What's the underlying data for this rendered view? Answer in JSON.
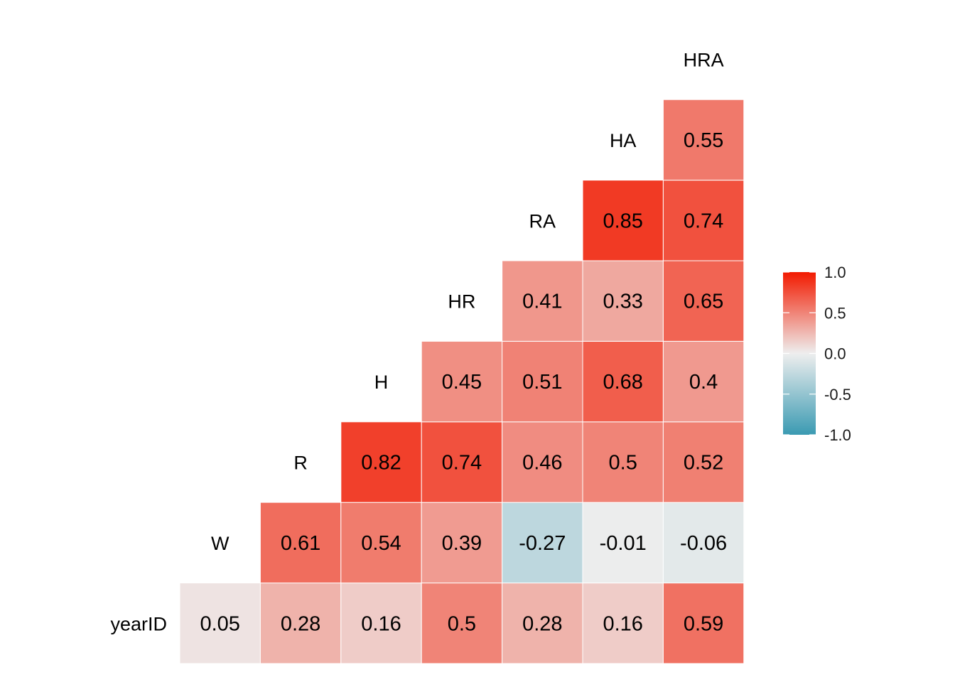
{
  "chart_data": {
    "type": "heatmap",
    "title": "",
    "variables": [
      "yearID",
      "W",
      "R",
      "H",
      "HR",
      "RA",
      "HA",
      "HRA"
    ],
    "pairs": [
      {
        "row": "W",
        "col": "yearID",
        "value": 0.05
      },
      {
        "row": "R",
        "col": "yearID",
        "value": 0.28
      },
      {
        "row": "R",
        "col": "W",
        "value": 0.61
      },
      {
        "row": "H",
        "col": "yearID",
        "value": 0.16
      },
      {
        "row": "H",
        "col": "W",
        "value": 0.54
      },
      {
        "row": "H",
        "col": "R",
        "value": 0.82
      },
      {
        "row": "HR",
        "col": "yearID",
        "value": 0.5
      },
      {
        "row": "HR",
        "col": "W",
        "value": 0.39
      },
      {
        "row": "HR",
        "col": "R",
        "value": 0.74
      },
      {
        "row": "HR",
        "col": "H",
        "value": 0.45
      },
      {
        "row": "RA",
        "col": "yearID",
        "value": 0.28
      },
      {
        "row": "RA",
        "col": "W",
        "value": -0.27
      },
      {
        "row": "RA",
        "col": "R",
        "value": 0.46
      },
      {
        "row": "RA",
        "col": "H",
        "value": 0.51
      },
      {
        "row": "RA",
        "col": "HR",
        "value": 0.41
      },
      {
        "row": "HA",
        "col": "yearID",
        "value": 0.16
      },
      {
        "row": "HA",
        "col": "W",
        "value": -0.01
      },
      {
        "row": "HA",
        "col": "R",
        "value": 0.5
      },
      {
        "row": "HA",
        "col": "H",
        "value": 0.68
      },
      {
        "row": "HA",
        "col": "HR",
        "value": 0.33
      },
      {
        "row": "HA",
        "col": "RA",
        "value": 0.85
      },
      {
        "row": "HRA",
        "col": "yearID",
        "value": 0.59
      },
      {
        "row": "HRA",
        "col": "W",
        "value": -0.06
      },
      {
        "row": "HRA",
        "col": "R",
        "value": 0.52
      },
      {
        "row": "HRA",
        "col": "H",
        "value": 0.4
      },
      {
        "row": "HRA",
        "col": "HR",
        "value": 0.65
      },
      {
        "row": "HRA",
        "col": "RA",
        "value": 0.74
      },
      {
        "row": "HRA",
        "col": "HA",
        "value": 0.55
      }
    ],
    "color_scale": {
      "low": "#3A9AB2",
      "mid": "#EEEEEE",
      "high": "#F21A00",
      "limits": [
        -1,
        1
      ]
    },
    "legend": {
      "position": "right",
      "ticks": [
        1.0,
        0.5,
        0.0,
        -0.5,
        -1.0
      ],
      "tick_labels": [
        "1.0",
        "0.5",
        "0.0",
        "-0.5",
        "-1.0"
      ]
    }
  }
}
